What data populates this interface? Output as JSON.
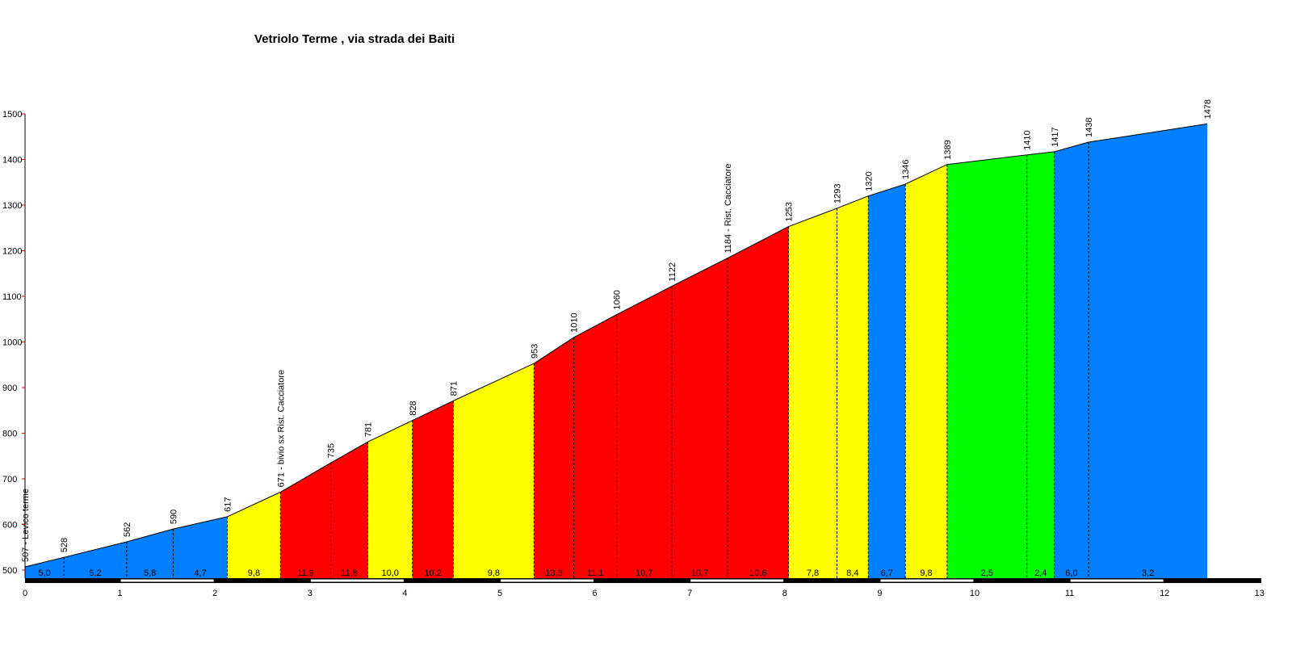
{
  "chart_data": {
    "type": "area",
    "title": "Vetriolo Terme , via strada dei Baiti",
    "xlabel": "",
    "ylabel": "",
    "xlim": [
      0,
      13
    ],
    "ylim": [
      480,
      1500
    ],
    "x_ticks": [
      "0",
      "1",
      "2",
      "3",
      "4",
      "5",
      "6",
      "7",
      "8",
      "9",
      "10",
      "11",
      "12",
      "13"
    ],
    "y_ticks": [
      "500",
      "600",
      "700",
      "800",
      "900",
      "1000",
      "1100",
      "1200",
      "1300",
      "1400",
      "1500"
    ],
    "points": [
      {
        "km": 0,
        "elev": 507,
        "label": "507 - Levico terme"
      },
      {
        "km": 0.41,
        "elev": 528,
        "label": "528"
      },
      {
        "km": 1.07,
        "elev": 562,
        "label": "562"
      },
      {
        "km": 1.56,
        "elev": 590,
        "label": "590"
      },
      {
        "km": 2.13,
        "elev": 617,
        "label": "617"
      },
      {
        "km": 2.69,
        "elev": 671,
        "label": "671 - bivio sx Rist. Cacciatore"
      },
      {
        "km": 3.22,
        "elev": 735,
        "label": "735"
      },
      {
        "km": 3.61,
        "elev": 781,
        "label": "781"
      },
      {
        "km": 4.08,
        "elev": 828,
        "label": "828"
      },
      {
        "km": 4.51,
        "elev": 871,
        "label": "871"
      },
      {
        "km": 5.36,
        "elev": 953,
        "label": "953"
      },
      {
        "km": 5.78,
        "elev": 1010,
        "label": "1010"
      },
      {
        "km": 6.23,
        "elev": 1060,
        "label": "1060"
      },
      {
        "km": 6.81,
        "elev": 1122,
        "label": "1122"
      },
      {
        "km": 7.4,
        "elev": 1184,
        "label": "1184 - Rist. Cacciatore"
      },
      {
        "km": 8.04,
        "elev": 1253,
        "label": "1253"
      },
      {
        "km": 8.55,
        "elev": 1293,
        "label": "1293"
      },
      {
        "km": 8.88,
        "elev": 1320,
        "label": "1320"
      },
      {
        "km": 9.27,
        "elev": 1346,
        "label": "1346"
      },
      {
        "km": 9.71,
        "elev": 1389,
        "label": "1389"
      },
      {
        "km": 10.55,
        "elev": 1410,
        "label": "1410"
      },
      {
        "km": 10.84,
        "elev": 1417,
        "label": "1417"
      },
      {
        "km": 11.2,
        "elev": 1438,
        "label": "1438"
      },
      {
        "km": 12.45,
        "elev": 1478,
        "label": "1478"
      }
    ],
    "gradients": [
      "5,0",
      "5,2",
      "5,8",
      "4,7",
      "9,8",
      "11,9",
      "11,8",
      "10,0",
      "10,2",
      "9,8",
      "13,3",
      "11,1",
      "10,7",
      "10,7",
      "10,6",
      "7,8",
      "8,4",
      "6,7",
      "9,8",
      "2,5",
      "2,4",
      "6,0",
      "3,2"
    ],
    "colors": {
      "green": "#00ff00",
      "blue": "#0080ff",
      "yellow": "#ffff00",
      "red": "#ff0000"
    }
  }
}
